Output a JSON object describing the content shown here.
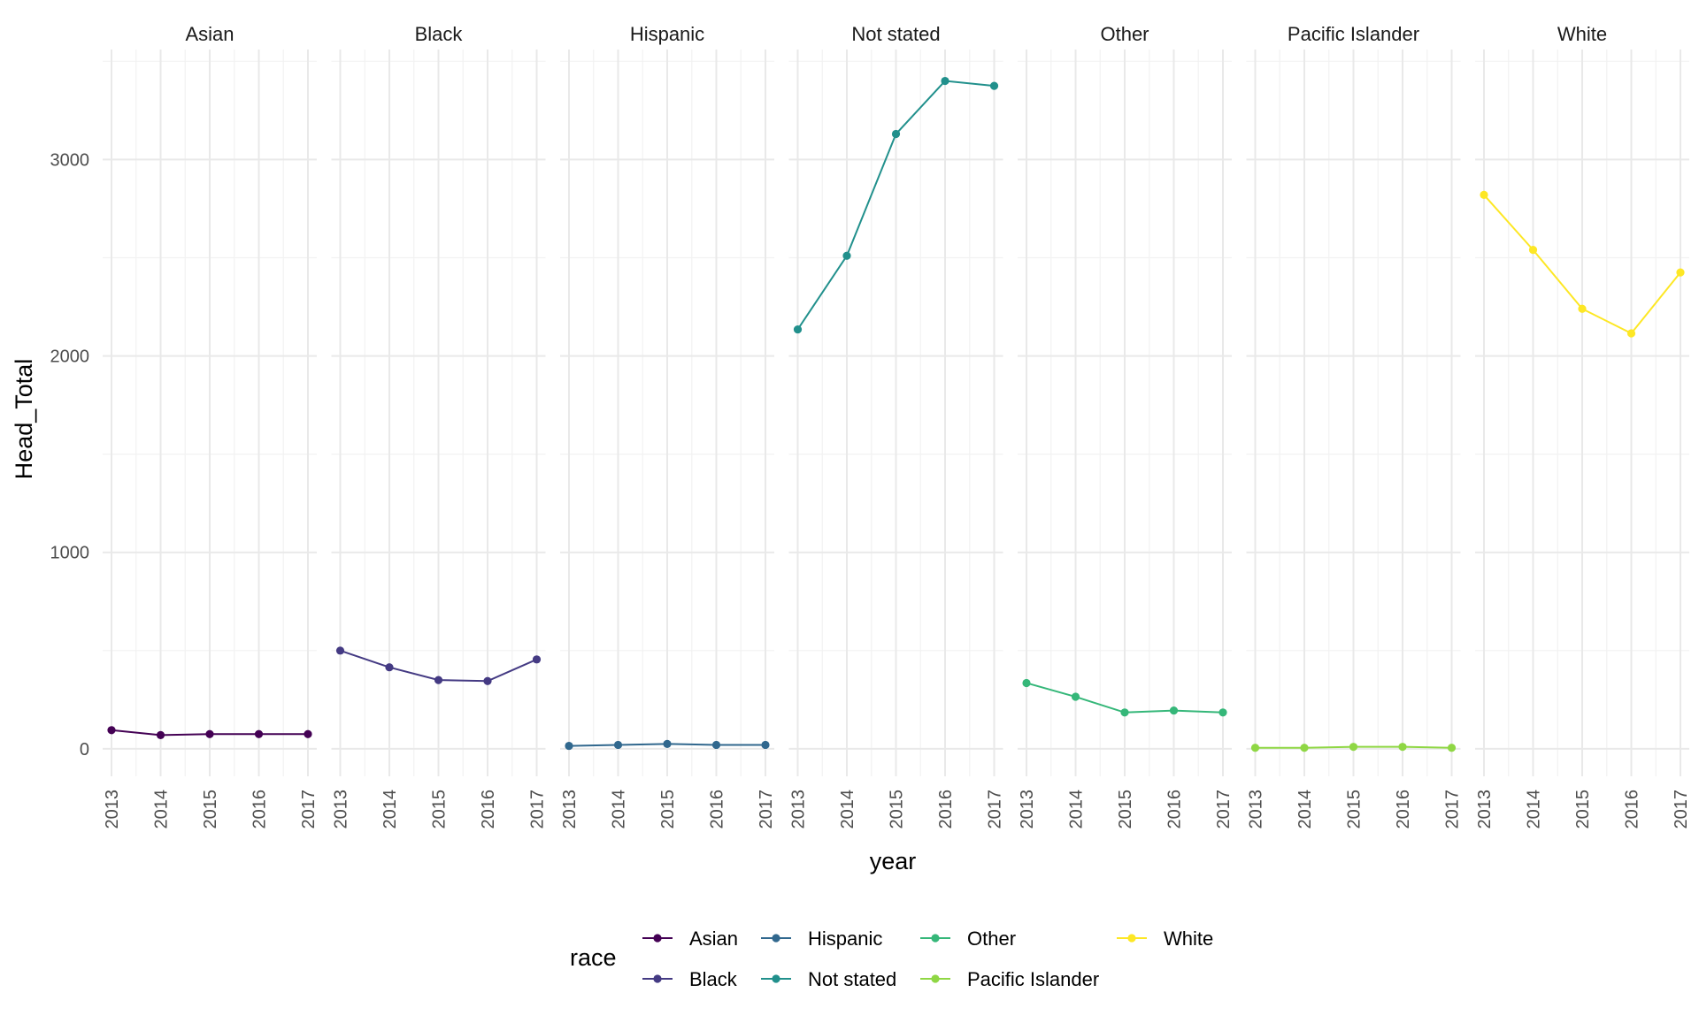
{
  "chart_data": {
    "type": "line",
    "facet_variable": "race",
    "facets": [
      "Asian",
      "Black",
      "Hispanic",
      "Not stated",
      "Other",
      "Pacific Islander",
      "White"
    ],
    "x": [
      2013,
      2014,
      2015,
      2016,
      2017
    ],
    "x_tick_labels": [
      "2013",
      "2014",
      "2015",
      "2016",
      "2017"
    ],
    "xlabel": "year",
    "ylabel": "Head_Total",
    "ylim": [
      -140,
      3560
    ],
    "y_ticks": [
      0,
      1000,
      2000,
      3000
    ],
    "y_tick_labels": [
      "0",
      "1000",
      "2000",
      "3000"
    ],
    "grid": true,
    "legend": {
      "title": "race",
      "position": "bottom"
    },
    "series": [
      {
        "name": "Asian",
        "color": "#440154",
        "values": [
          95,
          70,
          75,
          75,
          75
        ]
      },
      {
        "name": "Black",
        "color": "#443A83",
        "values": [
          500,
          415,
          350,
          345,
          455
        ]
      },
      {
        "name": "Hispanic",
        "color": "#31688E",
        "values": [
          15,
          20,
          25,
          20,
          20
        ]
      },
      {
        "name": "Not stated",
        "color": "#21908C",
        "values": [
          2135,
          2510,
          3130,
          3400,
          3375
        ]
      },
      {
        "name": "Other",
        "color": "#35B779",
        "values": [
          335,
          265,
          185,
          195,
          185
        ]
      },
      {
        "name": "Pacific Islander",
        "color": "#8FD744",
        "values": [
          5,
          5,
          10,
          10,
          5
        ]
      },
      {
        "name": "White",
        "color": "#FDE725",
        "values": [
          2820,
          2540,
          2240,
          2115,
          2425
        ]
      }
    ]
  }
}
